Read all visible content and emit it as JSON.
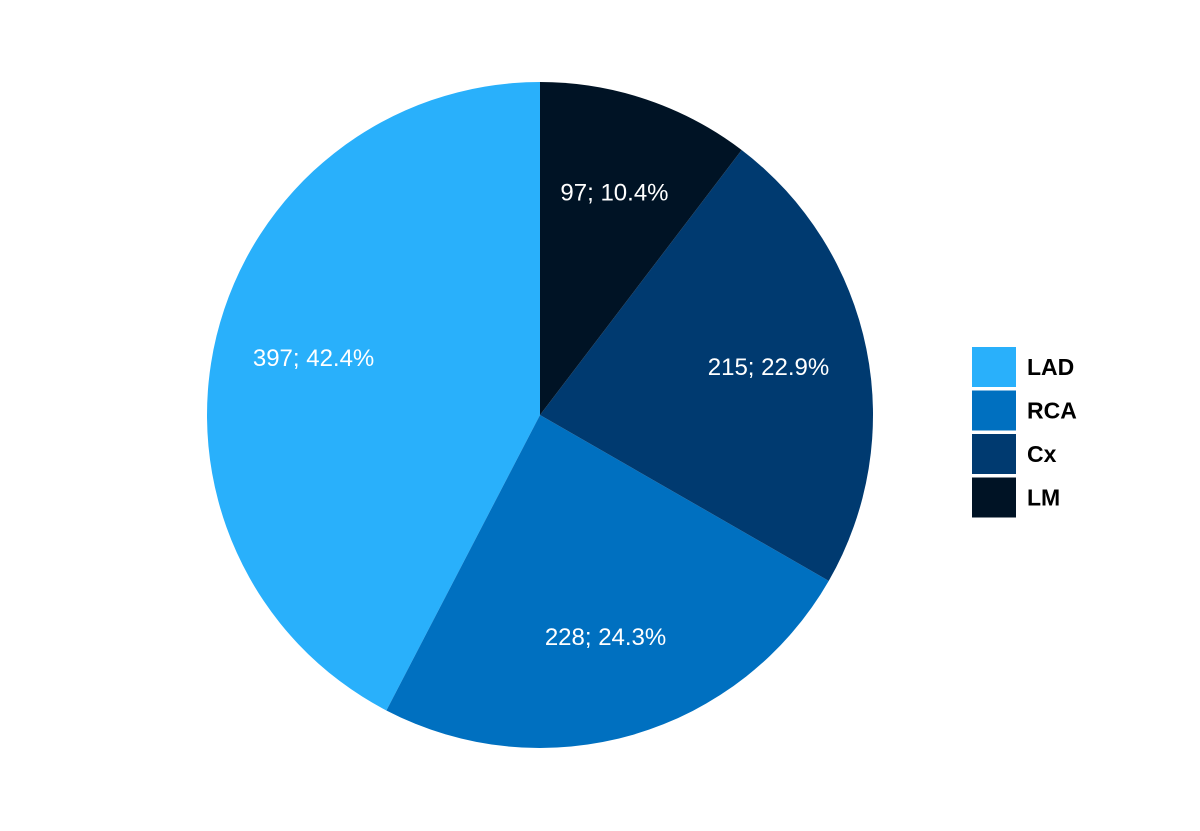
{
  "chart_data": {
    "type": "pie",
    "categories": [
      "LAD",
      "RCA",
      "Cx",
      "LM"
    ],
    "values": [
      397,
      228,
      215,
      97
    ],
    "value_labels": [
      "397; 42.4%",
      "228; 24.3%",
      "215; 22.9%",
      "97; 10.4%"
    ],
    "colors": [
      "#29b0fb",
      "#0070c0",
      "#003a70",
      "#001325"
    ],
    "legend": "right"
  }
}
